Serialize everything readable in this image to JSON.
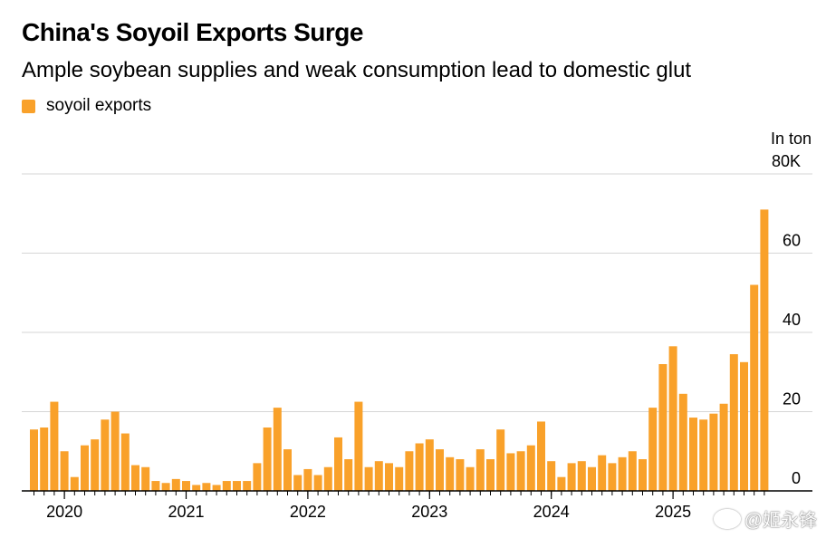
{
  "colors": {
    "bar": "#F9A12A",
    "grid": "#d6d6d6",
    "axis": "#000000"
  },
  "watermark": "@姬永锋",
  "chart_data": {
    "type": "bar",
    "title": "China's Soyoil Exports Surge",
    "subtitle": "Ample soybean supplies and weak consumption lead to domestic glut",
    "legend": [
      "soyoil exports"
    ],
    "unit_label": "In ton",
    "y_tick_labels": [
      "0",
      "20",
      "40",
      "60",
      "80K"
    ],
    "y_ticks": [
      0,
      20,
      40,
      60,
      80
    ],
    "ylim": [
      0,
      80
    ],
    "x_tick_labels": [
      "2020",
      "2021",
      "2022",
      "2023",
      "2024",
      "2025"
    ],
    "x_tick_month_index": [
      0,
      12,
      24,
      36,
      48,
      60
    ],
    "start": "2019-10",
    "series": [
      {
        "name": "soyoil exports",
        "values": [
          15.5,
          16,
          22.5,
          10,
          3.5,
          11.5,
          13,
          18,
          20,
          14.5,
          6.5,
          6,
          2.5,
          2,
          3,
          2.5,
          1.5,
          2,
          1.5,
          2.5,
          2.5,
          2.5,
          7,
          16,
          21,
          10.5,
          4,
          5.5,
          4,
          6,
          13.5,
          8,
          22.5,
          6,
          7.5,
          7,
          6,
          10,
          12,
          13,
          10.5,
          8.5,
          8,
          6,
          10.5,
          8,
          15.5,
          9.5,
          10,
          11.5,
          17.5,
          7.5,
          3.5,
          7,
          7.5,
          6,
          9,
          7,
          8.5,
          10,
          8,
          21,
          32,
          36.5,
          24.5,
          18.5,
          18,
          19.5,
          22,
          34.5,
          32.5,
          52,
          71
        ]
      }
    ]
  }
}
